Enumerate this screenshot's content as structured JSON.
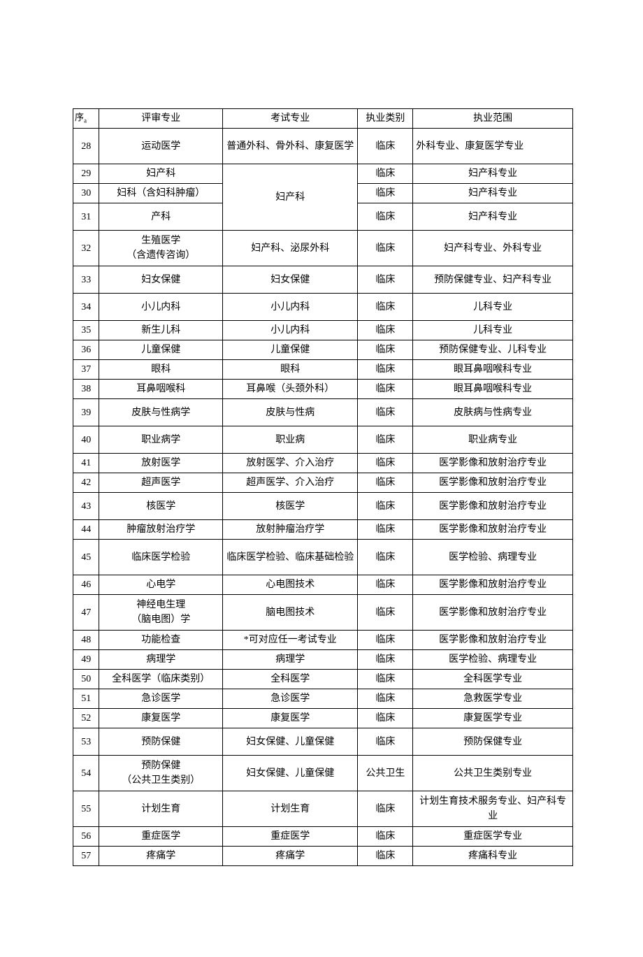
{
  "columns": [
    "序",
    "评审专业",
    "考试专业",
    "执业类别",
    "执业范围"
  ],
  "rows": [
    {
      "seq": "28",
      "review": "运动医学",
      "exam": "普通外科、骨外科、康复医学",
      "cat": "临床",
      "scope": "外科专业、康复医学专业",
      "scope_align": "left",
      "tall": true
    },
    {
      "seq": "29",
      "review": "妇产科",
      "exam_merge_start": true,
      "exam_merge_span": 3,
      "exam": "妇产科",
      "cat": "临床",
      "scope": "妇产科专业"
    },
    {
      "seq": "30",
      "review": "妇科（含妇科肿瘤）",
      "exam_merged": true,
      "cat": "临床",
      "scope": "妇产科专业"
    },
    {
      "seq": "31",
      "review": "产科",
      "exam_merged": true,
      "cat": "临床",
      "scope": "妇产科专业",
      "med": true
    },
    {
      "seq": "32",
      "review": "生殖医学\n（含遗传咨询）",
      "exam": "妇产科、泌尿外科",
      "cat": "临床",
      "scope": "妇产科专业、外科专业",
      "tall": true
    },
    {
      "seq": "33",
      "review": "妇女保健",
      "exam": "妇女保健",
      "cat": "临床",
      "scope": "预防保健专业、妇产科专业",
      "med": true
    },
    {
      "seq": "34",
      "review": "小儿内科",
      "exam": "小儿内科",
      "cat": "临床",
      "scope": "儿科专业",
      "med": true
    },
    {
      "seq": "35",
      "review": "新生儿科",
      "exam": "小儿内科",
      "cat": "临床",
      "scope": "儿科专业"
    },
    {
      "seq": "36",
      "review": "儿童保健",
      "exam": "儿童保健",
      "cat": "临床",
      "scope": "预防保健专业、儿科专业"
    },
    {
      "seq": "37",
      "review": "眼科",
      "exam": "眼科",
      "cat": "临床",
      "scope": "眼耳鼻咽喉科专业"
    },
    {
      "seq": "38",
      "review": "耳鼻咽喉科",
      "exam": "耳鼻喉（头颈外科）",
      "cat": "临床",
      "scope": "眼耳鼻咽喉科专业"
    },
    {
      "seq": "39",
      "review": "皮肤与性病学",
      "exam": "皮肤与性病",
      "cat": "临床",
      "scope": "皮肤病与性病专业",
      "med": true
    },
    {
      "seq": "40",
      "review": "职业病学",
      "exam": "职业病",
      "cat": "临床",
      "scope": "职业病专业",
      "med": true
    },
    {
      "seq": "41",
      "review": "放射医学",
      "exam": "放射医学、介入治疗",
      "cat": "临床",
      "scope": "医学影像和放射治疗专业"
    },
    {
      "seq": "42",
      "review": "超声医学",
      "exam": "超声医学、介入治疗",
      "cat": "临床",
      "scope": "医学影像和放射治疗专业"
    },
    {
      "seq": "43",
      "review": "核医学",
      "exam": "核医学",
      "cat": "临床",
      "scope": "医学影像和放射治疗专业",
      "med": true
    },
    {
      "seq": "44",
      "review": "肿瘤放射治疗学",
      "exam": "放射肿瘤治疗学",
      "cat": "临床",
      "scope": "医学影像和放射治疗专业"
    },
    {
      "seq": "45",
      "review": "临床医学检验",
      "exam": "临床医学检验、临床基础检验",
      "cat": "临床",
      "scope": "医学检验、病理专业",
      "tall": true
    },
    {
      "seq": "46",
      "review": "心电学",
      "exam": "心电图技术",
      "cat": "临床",
      "scope": "医学影像和放射治疗专业"
    },
    {
      "seq": "47",
      "review": "神经电生理\n（脑电图）学",
      "exam": "脑电图技术",
      "cat": "临床",
      "scope": "医学影像和放射治疗专业",
      "tall": true
    },
    {
      "seq": "48",
      "review": "功能检查",
      "exam": "*可对应任一考试专业",
      "cat": "临床",
      "scope": "医学影像和放射治疗专业"
    },
    {
      "seq": "49",
      "review": "病理学",
      "exam": "病理学",
      "cat": "临床",
      "scope": "医学检验、病理专业"
    },
    {
      "seq": "50",
      "review": "全科医学（临床类别）",
      "exam": "全科医学",
      "cat": "临床",
      "scope": "全科医学专业"
    },
    {
      "seq": "51",
      "review": "急诊医学",
      "exam": "急诊医学",
      "cat": "临床",
      "scope": "急救医学专业"
    },
    {
      "seq": "52",
      "review": "康复医学",
      "exam": "康复医学",
      "cat": "临床",
      "scope": "康复医学专业"
    },
    {
      "seq": "53",
      "review": "预防保健",
      "exam": "妇女保健、儿童保健",
      "cat": "临床",
      "scope": "预防保健专业",
      "med": true
    },
    {
      "seq": "54",
      "review": "预防保健\n（公共卫生类别）",
      "exam": "妇女保健、儿童保健",
      "cat": "公共卫生",
      "scope": "公共卫生类别专业",
      "tall": true
    },
    {
      "seq": "55",
      "review": "计划生育",
      "exam": "计划生育",
      "cat": "临床",
      "scope": "计划生育技术服务专业、妇产科专业",
      "tall": true
    },
    {
      "seq": "56",
      "review": "重症医学",
      "exam": "重症医学",
      "cat": "临床",
      "scope": "重症医学专业"
    },
    {
      "seq": "57",
      "review": "疼痛学",
      "exam": "疼痛学",
      "cat": "临床",
      "scope": "疼痛科专业"
    }
  ],
  "style": {
    "font_family": "SimSun",
    "font_size_pt": 10.5,
    "border_color": "#000000",
    "background_color": "#ffffff",
    "text_color": "#000000"
  }
}
